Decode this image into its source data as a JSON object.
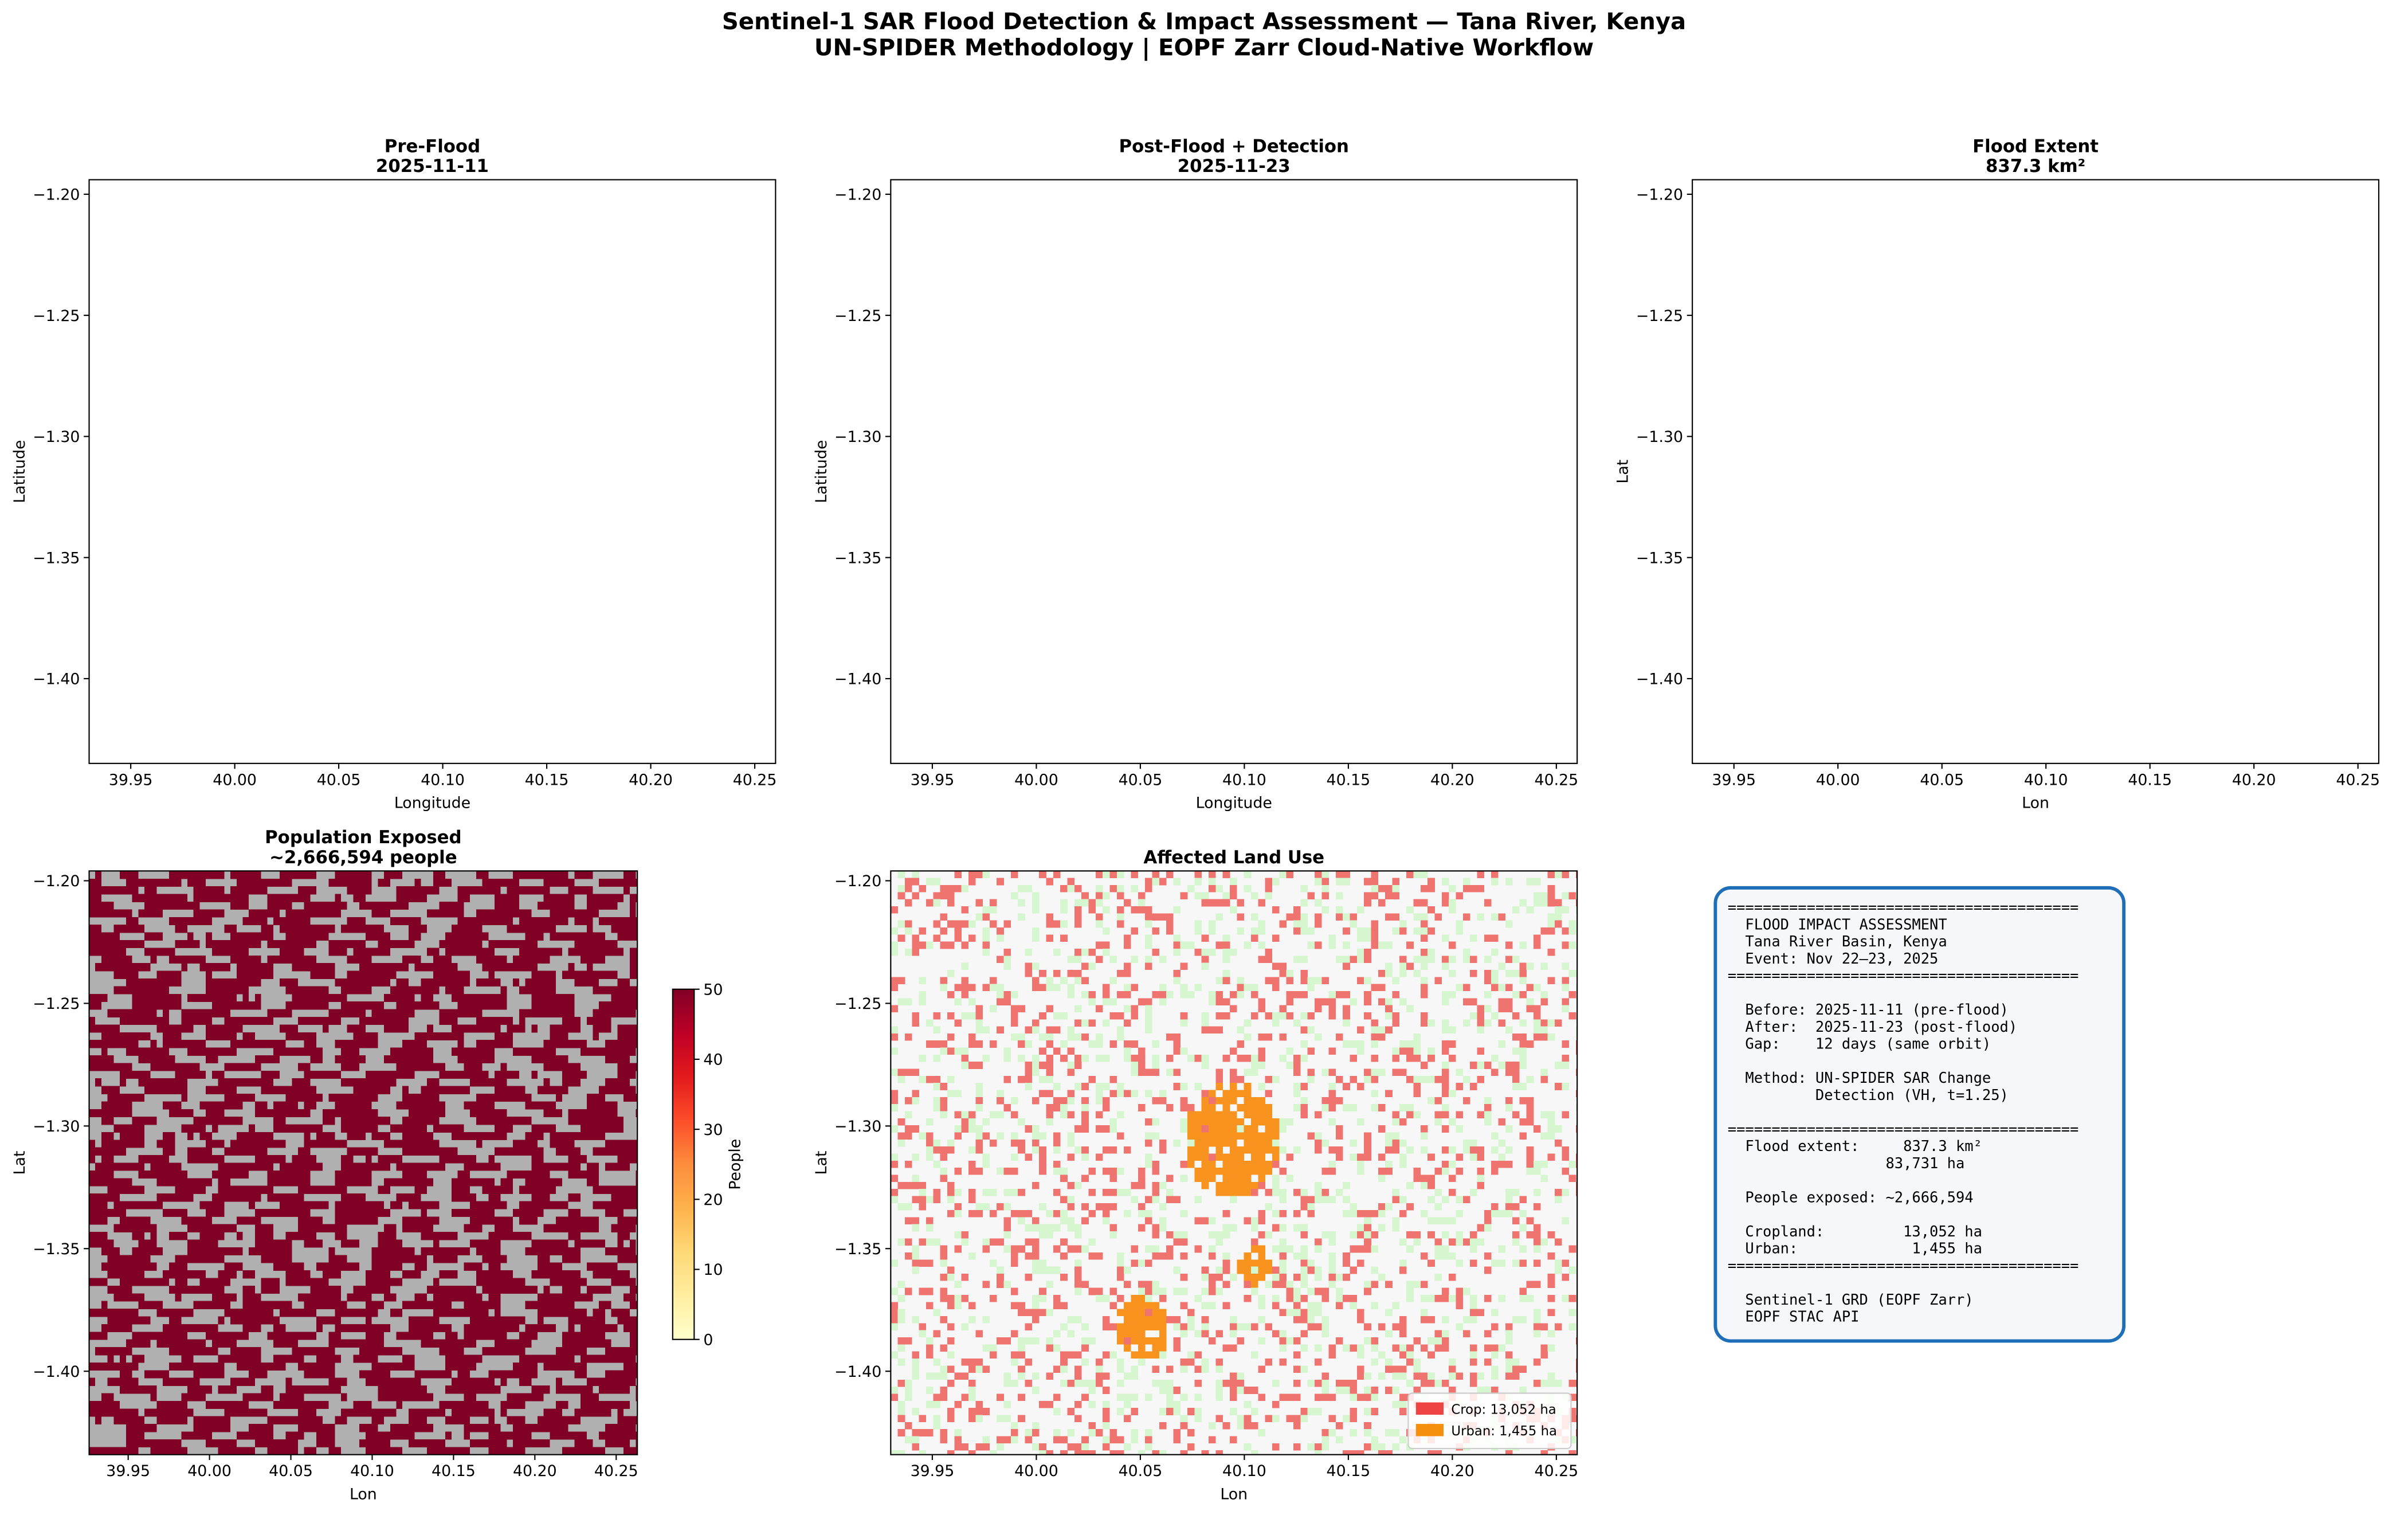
{
  "title": [
    "Sentinel-1 SAR Flood Detection & Impact Assessment — Tana River, Kenya",
    "UN-SPIDER Methodology | EOPF Zarr Cloud-Native Workflow"
  ],
  "chart_data": [
    {
      "type": "raster",
      "title": [
        "Pre-Flood",
        "2025-11-11"
      ],
      "xlabel": "Longitude",
      "ylabel": "Latitude",
      "colors": [
        "#111111",
        "#b4b4b4"
      ],
      "xlim": [
        39.93,
        40.26
      ],
      "ylim": [
        -1.435,
        -1.194
      ],
      "xticks": [
        39.95,
        {
          "value": 40.0,
          "label": "40.00"
        },
        40.05,
        {
          "value": 40.1,
          "label": "40.10"
        },
        40.15,
        {
          "value": 40.2,
          "label": "40.20"
        },
        40.25
      ],
      "yticks": [
        {
          "value": -1.2,
          "label": "−1.20"
        },
        {
          "value": -1.25,
          "label": "−1.25"
        },
        {
          "value": -1.3,
          "label": "−1.30"
        },
        {
          "value": -1.35,
          "label": "−1.35"
        },
        {
          "value": -1.4,
          "label": "−1.40"
        }
      ]
    },
    {
      "type": "raster",
      "title": [
        "Post-Flood + Detection",
        "2025-11-23"
      ],
      "xlabel": "Longitude",
      "ylabel": "Latitude",
      "colors": [
        "#111111",
        "#b4b4b4",
        "#2f66d0"
      ],
      "xlim": [
        39.93,
        40.26
      ],
      "ylim": [
        -1.435,
        -1.194
      ],
      "xticks": [
        39.95,
        {
          "value": 40.0,
          "label": "40.00"
        },
        40.05,
        {
          "value": 40.1,
          "label": "40.10"
        },
        40.15,
        {
          "value": 40.2,
          "label": "40.20"
        },
        40.25
      ],
      "yticks": [
        {
          "value": -1.2,
          "label": "−1.20"
        },
        {
          "value": -1.25,
          "label": "−1.25"
        },
        {
          "value": -1.3,
          "label": "−1.30"
        },
        {
          "value": -1.35,
          "label": "−1.35"
        },
        {
          "value": -1.4,
          "label": "−1.40"
        }
      ]
    },
    {
      "type": "raster",
      "title": [
        "Flood Extent",
        "837.3 km²"
      ],
      "xlabel": "Lon",
      "ylabel": "Lat",
      "colors": [
        "#f0f0f0",
        "#0043c9"
      ],
      "xlim": [
        39.93,
        40.26
      ],
      "ylim": [
        -1.435,
        -1.194
      ],
      "xticks": [
        39.95,
        {
          "value": 40.0,
          "label": "40.00"
        },
        40.05,
        {
          "value": 40.1,
          "label": "40.10"
        },
        40.15,
        {
          "value": 40.2,
          "label": "40.20"
        },
        40.25
      ],
      "yticks": [
        {
          "value": -1.2,
          "label": "−1.20"
        },
        {
          "value": -1.25,
          "label": "−1.25"
        },
        {
          "value": -1.3,
          "label": "−1.30"
        },
        {
          "value": -1.35,
          "label": "−1.35"
        },
        {
          "value": -1.4,
          "label": "−1.40"
        }
      ]
    },
    {
      "type": "raster",
      "title": [
        "Population Exposed",
        "~2,666,594 people"
      ],
      "xlabel": "Lon",
      "ylabel": "Lat",
      "colors": [
        "#b0b0b0",
        "#800026"
      ],
      "xlim": [
        39.926,
        40.263
      ],
      "ylim": [
        -1.434,
        -1.196
      ],
      "xticks": [
        39.95,
        {
          "value": 40.0,
          "label": "40.00"
        },
        40.05,
        {
          "value": 40.1,
          "label": "40.10"
        },
        40.15,
        {
          "value": 40.2,
          "label": "40.20"
        },
        40.25
      ],
      "yticks": [
        {
          "value": -1.2,
          "label": "−1.20"
        },
        {
          "value": -1.25,
          "label": "−1.25"
        },
        {
          "value": -1.3,
          "label": "−1.30"
        },
        {
          "value": -1.35,
          "label": "−1.35"
        },
        {
          "value": -1.4,
          "label": "−1.40"
        }
      ],
      "colorbar": {
        "label": "People",
        "cmap": "YlOrRd",
        "clim": [
          0,
          50
        ],
        "ticks": [
          0,
          10,
          20,
          30,
          40,
          50
        ]
      }
    },
    {
      "type": "raster",
      "title": [
        "Affected Land Use"
      ],
      "xlabel": "Lon",
      "ylabel": "Lat",
      "colors": [
        "#f7f7f7",
        "#ef746f",
        "#d5f6cf",
        "#f7931e"
      ],
      "xlim": [
        39.93,
        40.26
      ],
      "ylim": [
        -1.434,
        -1.196
      ],
      "xticks": [
        39.95,
        {
          "value": 40.0,
          "label": "40.00"
        },
        40.05,
        {
          "value": 40.1,
          "label": "40.10"
        },
        40.15,
        {
          "value": 40.2,
          "label": "40.20"
        },
        40.25
      ],
      "yticks": [
        {
          "value": -1.2,
          "label": "−1.20"
        },
        {
          "value": -1.25,
          "label": "−1.25"
        },
        {
          "value": -1.3,
          "label": "−1.30"
        },
        {
          "value": -1.35,
          "label": "−1.35"
        },
        {
          "value": -1.4,
          "label": "−1.40"
        }
      ],
      "legend": [
        {
          "label": "Crop: 13,052 ha",
          "color": "#ef4444"
        },
        {
          "label": "Urban: 1,455 ha",
          "color": "#f5900f"
        }
      ],
      "legend_loc": "lower right"
    },
    {
      "type": "text",
      "border_color": "#1f6fb8",
      "blocks": [
        [
          "========================================",
          "  FLOOD IMPACT ASSESSMENT",
          "  Tana River Basin, Kenya",
          "  Event: Nov 22–23, 2025",
          "========================================"
        ],
        [
          "  Before: 2025-11-11 (pre-flood)",
          "  After:  2025-11-23 (post-flood)",
          "  Gap:    12 days (same orbit)"
        ],
        [
          "  Method: UN-SPIDER SAR Change",
          "          Detection (VH, t=1.25)"
        ],
        [
          "========================================",
          "  Flood extent:     837.3 km²",
          "                  83,731 ha"
        ],
        [
          "  People exposed: ~2,666,594"
        ],
        [
          "  Cropland:         13,052 ha",
          "  Urban:             1,455 ha",
          "========================================"
        ],
        [
          "  Sentinel-1 GRD (EOPF Zarr)",
          "  EOPF STAC API"
        ]
      ]
    }
  ]
}
